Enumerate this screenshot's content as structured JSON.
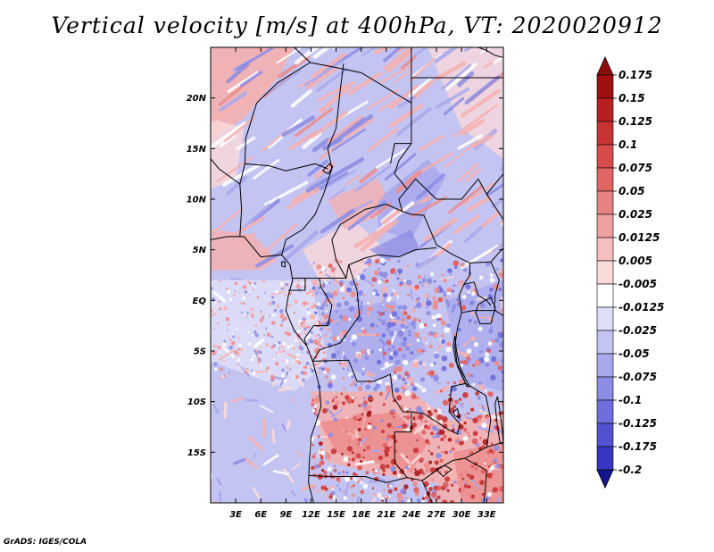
{
  "title": "Vertical velocity [m/s] at 400hPa, VT: 2020020912",
  "credit": "GrADS: IGES/COLA",
  "map": {
    "lon_range": [
      0,
      35
    ],
    "lat_range": [
      -20,
      25
    ],
    "x_ticks": [
      {
        "lon": 3,
        "label": "3E"
      },
      {
        "lon": 6,
        "label": "6E"
      },
      {
        "lon": 9,
        "label": "9E"
      },
      {
        "lon": 12,
        "label": "12E"
      },
      {
        "lon": 15,
        "label": "15E"
      },
      {
        "lon": 18,
        "label": "18E"
      },
      {
        "lon": 21,
        "label": "21E"
      },
      {
        "lon": 24,
        "label": "24E"
      },
      {
        "lon": 27,
        "label": "27E"
      },
      {
        "lon": 30,
        "label": "30E"
      },
      {
        "lon": 33,
        "label": "33E"
      }
    ],
    "y_ticks": [
      {
        "lat": 20,
        "label": "20N"
      },
      {
        "lat": 15,
        "label": "15N"
      },
      {
        "lat": 10,
        "label": "10N"
      },
      {
        "lat": 5,
        "label": "5N"
      },
      {
        "lat": 0,
        "label": "EQ"
      },
      {
        "lat": -5,
        "label": "5S"
      },
      {
        "lat": -10,
        "label": "10S"
      },
      {
        "lat": -15,
        "label": "15S"
      }
    ]
  },
  "colorbar": {
    "levels": [
      {
        "label": "0.175",
        "color": "#a01010"
      },
      {
        "label": "0.15",
        "color": "#b82020"
      },
      {
        "label": "0.125",
        "color": "#c83434"
      },
      {
        "label": "0.1",
        "color": "#d64c4c"
      },
      {
        "label": "0.075",
        "color": "#e06666"
      },
      {
        "label": "0.05",
        "color": "#e88282"
      },
      {
        "label": "0.025",
        "color": "#f0a0a0"
      },
      {
        "label": "0.0125",
        "color": "#f6bebe"
      },
      {
        "label": "0.005",
        "color": "#fbdada"
      },
      {
        "label": "-0.005",
        "color": "#ffffff"
      },
      {
        "label": "-0.0125",
        "color": "#dedef8"
      },
      {
        "label": "-0.025",
        "color": "#c4c4f2"
      },
      {
        "label": "-0.05",
        "color": "#a8a8ec"
      },
      {
        "label": "-0.075",
        "color": "#8c8ce4"
      },
      {
        "label": "-0.1",
        "color": "#6e6edc"
      },
      {
        "label": "-0.125",
        "color": "#5252d0"
      },
      {
        "label": "-0.175",
        "color": "#3636c0"
      },
      {
        "label": "-0.2",
        "color": "#2020a8"
      }
    ],
    "top_color": "#8c0c0c",
    "bottom_color": "#14148c"
  },
  "chart_data": {
    "type": "heatmap",
    "title": "Vertical velocity [m/s] at 400hPa, VT: 2020020912",
    "variable": "Vertical velocity",
    "units": "m/s",
    "level": "400hPa",
    "valid_time": "2020020912",
    "xlim": [
      0,
      35
    ],
    "ylim": [
      -20,
      25
    ]
  }
}
